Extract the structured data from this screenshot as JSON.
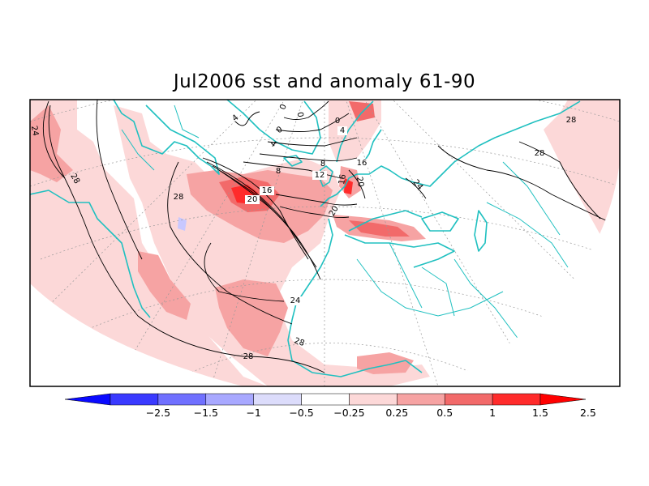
{
  "title": "Jul2006 sst and anomaly 61-90",
  "colorbar": {
    "ticks": [
      "−2.5",
      "−1.5",
      "−1",
      "−0.5",
      "−0.25",
      "0.25",
      "0.5",
      "1",
      "1.5",
      "2.5"
    ],
    "colors": [
      "#0a0aff",
      "#3a3aff",
      "#7070ff",
      "#a8a8ff",
      "#dcdcfb",
      "#ffffff",
      "#fcd8d8",
      "#f6a3a3",
      "#f26a6a",
      "#ff2b2b",
      "#ff0000"
    ]
  },
  "contour_labels": [
    "24",
    "28",
    "28",
    "28",
    "28",
    "24",
    "28",
    "28",
    "0",
    "0",
    "0",
    "0",
    "4",
    "4",
    "4",
    "8",
    "8",
    "12",
    "16",
    "20",
    "16",
    "16",
    "20",
    "20",
    "24"
  ],
  "colors": {
    "coastline": "#20c0c0",
    "graticule": "#999999",
    "contour": "#000000",
    "anomaly_light": "#fcd8d8",
    "anomaly_mid": "#f6a3a3",
    "anomaly_strong": "#f26a6a",
    "anomaly_max": "#ff2b2b",
    "anomaly_neg": "#c8c8ff"
  }
}
